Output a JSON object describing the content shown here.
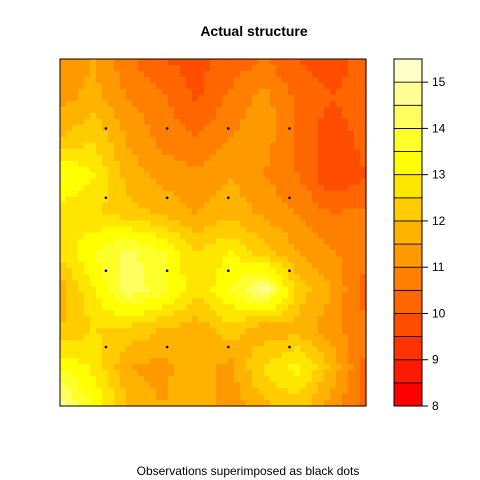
{
  "chart_data": {
    "type": "heatmap",
    "title": "Actual structure",
    "subtitle": "Observations superimposed as black dots",
    "colorbar": {
      "levels": [
        8,
        8.5,
        9,
        9.5,
        10,
        10.5,
        11,
        11.5,
        12,
        12.5,
        13,
        13.5,
        14,
        14.5,
        15,
        15.5
      ],
      "tick_values": [
        8,
        9,
        10,
        11,
        12,
        13,
        14,
        15
      ],
      "tick_labels": [
        "8",
        "9",
        "10",
        "11",
        "12",
        "13",
        "14",
        "15"
      ],
      "colors": [
        "#FF0000",
        "#FF1A00",
        "#FF3300",
        "#FF4D00",
        "#FF6600",
        "#FF8000",
        "#FF9900",
        "#FFB200",
        "#FFCC00",
        "#FFE600",
        "#FFFF00",
        "#FFFF2A",
        "#FFFF60",
        "#FFFF95",
        "#FFFFCA"
      ]
    },
    "grid": {
      "rows": 10,
      "cols": 10,
      "row_order": "top-to-bottom",
      "values": [
        [
          11.0,
          11.5,
          10.6,
          10.0,
          9.8,
          10.2,
          10.5,
          10.0,
          9.6,
          10.3
        ],
        [
          11.3,
          11.7,
          11.0,
          10.6,
          9.9,
          10.6,
          11.2,
          10.4,
          10.0,
          10.4
        ],
        [
          12.0,
          12.4,
          11.4,
          10.8,
          10.5,
          11.0,
          11.3,
          10.3,
          9.7,
          10.2
        ],
        [
          13.6,
          13.0,
          11.8,
          11.3,
          11.1,
          11.5,
          11.0,
          10.5,
          9.5,
          10.0
        ],
        [
          12.8,
          12.6,
          12.2,
          11.9,
          11.5,
          11.8,
          11.4,
          11.0,
          10.5,
          10.6
        ],
        [
          12.6,
          13.5,
          14.2,
          13.6,
          12.5,
          13.0,
          12.2,
          11.5,
          11.0,
          10.8
        ],
        [
          11.7,
          13.0,
          14.3,
          13.8,
          12.6,
          13.5,
          14.8,
          12.3,
          11.5,
          10.2
        ],
        [
          12.0,
          12.5,
          12.4,
          12.0,
          11.7,
          12.3,
          11.6,
          11.8,
          11.2,
          10.6
        ],
        [
          13.5,
          12.9,
          11.5,
          11.3,
          11.9,
          11.3,
          12.6,
          13.2,
          11.9,
          10.3
        ],
        [
          14.8,
          13.4,
          12.0,
          11.5,
          12.0,
          11.2,
          11.9,
          12.3,
          11.2,
          10.4
        ]
      ]
    },
    "observations": {
      "x": [
        0.15,
        0.35,
        0.55,
        0.75
      ],
      "y": [
        0.17,
        0.39,
        0.6,
        0.8
      ],
      "x_range": [
        0,
        1
      ],
      "y_range": [
        0,
        1
      ],
      "color": "#000000"
    }
  }
}
